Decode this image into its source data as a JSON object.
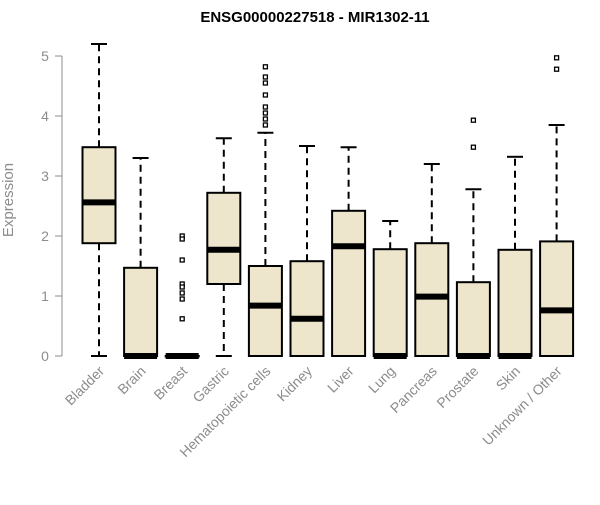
{
  "chart_data": {
    "type": "boxplot",
    "title": "ENSG00000227518 - MIR1302-11",
    "ylabel": "Expression",
    "xlabel": "",
    "ylim": [
      0,
      5.2
    ],
    "yticks": [
      0,
      1,
      2,
      3,
      4,
      5
    ],
    "grid": false,
    "box_fill": "#ede6cc",
    "categories": [
      "Bladder",
      "Brain",
      "Breast",
      "Gastric",
      "Hematopoietic cells",
      "Kidney",
      "Liver",
      "Lung",
      "Pancreas",
      "Prostate",
      "Skin",
      "Unknown / Other"
    ],
    "boxes": [
      {
        "whisker_low": 0,
        "q1": 1.88,
        "median": 2.56,
        "q3": 3.48,
        "whisker_high": 5.2,
        "outliers": []
      },
      {
        "whisker_low": 0,
        "q1": 0,
        "median": 0,
        "q3": 1.47,
        "whisker_high": 3.3,
        "outliers": []
      },
      {
        "whisker_low": 0,
        "q1": 0,
        "median": 0,
        "q3": 0,
        "whisker_high": 0,
        "outliers": [
          2.0,
          1.95,
          1.6,
          1.2,
          1.15,
          1.05,
          0.95,
          0.62
        ]
      },
      {
        "whisker_low": 0,
        "q1": 1.2,
        "median": 1.77,
        "q3": 2.72,
        "whisker_high": 3.63,
        "outliers": []
      },
      {
        "whisker_low": 0,
        "q1": 0,
        "median": 0.84,
        "q3": 1.5,
        "whisker_high": 3.72,
        "outliers": [
          4.82,
          4.65,
          4.55,
          4.35,
          4.15,
          4.05,
          3.95,
          3.85
        ]
      },
      {
        "whisker_low": 0,
        "q1": 0,
        "median": 0.62,
        "q3": 1.58,
        "whisker_high": 3.5,
        "outliers": []
      },
      {
        "whisker_low": 0,
        "q1": 0,
        "median": 1.83,
        "q3": 2.42,
        "whisker_high": 3.48,
        "outliers": []
      },
      {
        "whisker_low": 0,
        "q1": 0,
        "median": 0,
        "q3": 1.78,
        "whisker_high": 2.25,
        "outliers": []
      },
      {
        "whisker_low": 0,
        "q1": 0,
        "median": 0.99,
        "q3": 1.88,
        "whisker_high": 3.2,
        "outliers": []
      },
      {
        "whisker_low": 0,
        "q1": 0,
        "median": 0,
        "q3": 1.23,
        "whisker_high": 2.78,
        "outliers": [
          3.93,
          3.48
        ]
      },
      {
        "whisker_low": 0,
        "q1": 0,
        "median": 0,
        "q3": 1.77,
        "whisker_high": 3.32,
        "outliers": []
      },
      {
        "whisker_low": 0,
        "q1": 0,
        "median": 0.76,
        "q3": 1.91,
        "whisker_high": 3.85,
        "outliers": [
          4.97,
          4.78
        ]
      }
    ]
  }
}
